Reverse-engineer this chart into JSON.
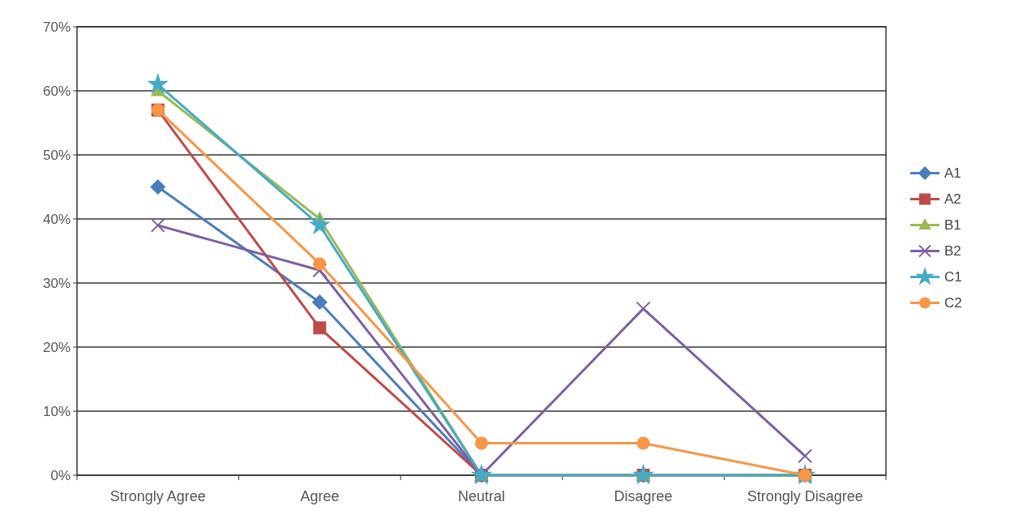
{
  "chart_data": {
    "type": "line",
    "categories": [
      "Strongly Agree",
      "Agree",
      "Neutral",
      "Disagree",
      "Strongly Disagree"
    ],
    "series": [
      {
        "name": "A1",
        "color": "#4a7ebb",
        "marker": "diamond",
        "values": [
          45,
          27,
          0,
          0,
          0
        ]
      },
      {
        "name": "A2",
        "color": "#be4b48",
        "marker": "square",
        "values": [
          57,
          23,
          0,
          0,
          0
        ]
      },
      {
        "name": "B1",
        "color": "#98b954",
        "marker": "triangle",
        "values": [
          60,
          40,
          0,
          0,
          0
        ]
      },
      {
        "name": "B2",
        "color": "#7d60a0",
        "marker": "cross",
        "values": [
          39,
          32,
          0,
          26,
          3
        ]
      },
      {
        "name": "C1",
        "color": "#46aac5",
        "marker": "star",
        "values": [
          61,
          39,
          0,
          0,
          0
        ]
      },
      {
        "name": "C2",
        "color": "#f79646",
        "marker": "circle",
        "values": [
          57,
          33,
          5,
          5,
          0
        ]
      }
    ],
    "ylim": [
      0,
      70
    ],
    "yticks": [
      {
        "value": 0,
        "label": "0%"
      },
      {
        "value": 10,
        "label": "10%"
      },
      {
        "value": 20,
        "label": "20%"
      },
      {
        "value": 30,
        "label": "30%"
      },
      {
        "value": 40,
        "label": "40%"
      },
      {
        "value": 50,
        "label": "50%"
      },
      {
        "value": 60,
        "label": "60%"
      },
      {
        "value": 70,
        "label": "70%"
      }
    ],
    "grid": "y",
    "legend": "right"
  }
}
